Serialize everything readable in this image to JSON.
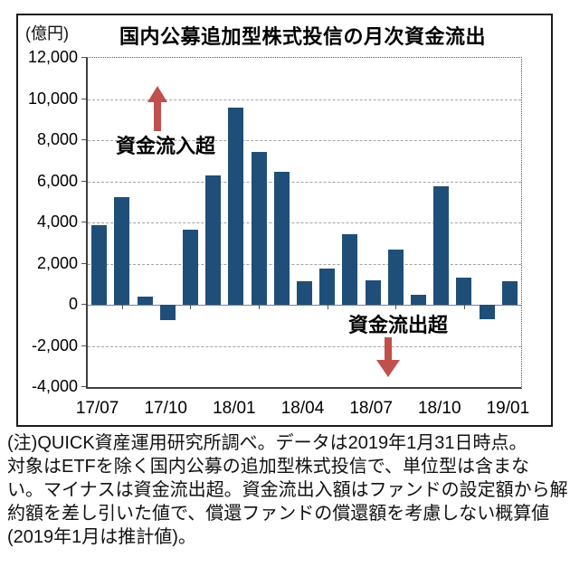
{
  "unit_label": "(億円)",
  "title": "国内公募追加型株式投信の月次資金流出",
  "annotations": {
    "inflow_label": "資金流入超",
    "outflow_label": "資金流出超"
  },
  "note_lines": [
    "(注)QUICK資産運用研究所調べ。データは2019年1月31日時点。",
    "対象はETFを除く国内公募の追加型株式投信で、単位型は含まな",
    "い。マイナスは資金流出超。資金流出入額はファンドの設定額から解",
    "約額を差し引いた値で、償還ファンドの償還額を考慮しない概算値",
    "(2019年1月は推計値)。"
  ],
  "colors": {
    "bar": "#1f4e79",
    "arrow": "#c0504d",
    "grid": "#a3a3a3"
  },
  "chart_data": {
    "type": "bar",
    "title": "国内公募追加型株式投信の月次資金流出",
    "unit": "億円",
    "categories": [
      "17/07",
      "17/08",
      "17/09",
      "17/10",
      "17/11",
      "17/12",
      "18/01",
      "18/02",
      "18/03",
      "18/04",
      "18/05",
      "18/06",
      "18/07",
      "18/08",
      "18/09",
      "18/10",
      "18/11",
      "18/12",
      "19/01"
    ],
    "values": [
      3850,
      5250,
      400,
      -750,
      3650,
      6300,
      9600,
      7450,
      6450,
      1150,
      1750,
      3450,
      1200,
      2700,
      500,
      5750,
      1300,
      -700,
      1150
    ],
    "x_tick_labels": [
      "17/07",
      "17/10",
      "18/01",
      "18/04",
      "18/07",
      "18/10",
      "19/01"
    ],
    "x_tick_interval": 3,
    "y_ticks": [
      12000,
      10000,
      8000,
      6000,
      4000,
      2000,
      0,
      -2000,
      -4000
    ],
    "ylim": [
      -4000,
      12000
    ],
    "grid": true,
    "legend_position": "none",
    "annotations": [
      {
        "text": "資金流入超",
        "arrow": "up",
        "color": "#c0504d"
      },
      {
        "text": "資金流出超",
        "arrow": "down",
        "color": "#c0504d"
      }
    ]
  }
}
